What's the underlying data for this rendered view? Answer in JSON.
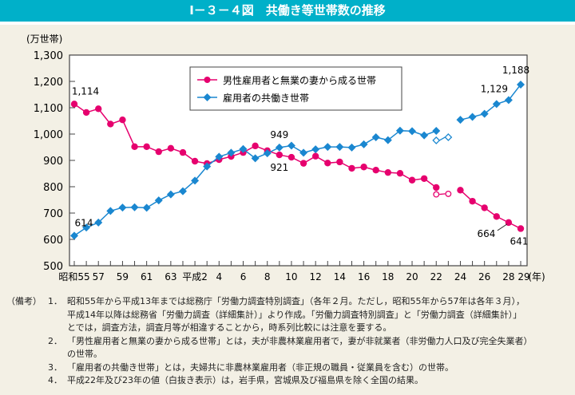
{
  "title": "Ⅰ－３－４図　共働き等世帯数の推移",
  "chart_data": {
    "type": "line",
    "ylabel": "(万世帯)",
    "xlabel": "(年)",
    "ylim": [
      500,
      1300
    ],
    "yticks": [
      "500",
      "600",
      "700",
      "800",
      "900",
      "1,000",
      "1,100",
      "1,200",
      "1,300"
    ],
    "x": [
      1980,
      1981,
      1982,
      1983,
      1984,
      1985,
      1986,
      1987,
      1988,
      1989,
      1990,
      1991,
      1992,
      1993,
      1994,
      1995,
      1996,
      1997,
      1998,
      1999,
      2000,
      2001,
      2002,
      2003,
      2004,
      2005,
      2006,
      2007,
      2008,
      2009,
      2010,
      2011,
      2012,
      2013,
      2014,
      2015,
      2016,
      2017
    ],
    "xtick_labels": [
      {
        "x": 1980,
        "label": "昭和55"
      },
      {
        "x": 1982,
        "label": "57"
      },
      {
        "x": 1984,
        "label": "59"
      },
      {
        "x": 1986,
        "label": "61"
      },
      {
        "x": 1988,
        "label": "63"
      },
      {
        "x": 1990,
        "label": "平成2"
      },
      {
        "x": 1992,
        "label": "4"
      },
      {
        "x": 1994,
        "label": "6"
      },
      {
        "x": 1996,
        "label": "8"
      },
      {
        "x": 1998,
        "label": "10"
      },
      {
        "x": 2000,
        "label": "12"
      },
      {
        "x": 2002,
        "label": "14"
      },
      {
        "x": 2004,
        "label": "16"
      },
      {
        "x": 2006,
        "label": "18"
      },
      {
        "x": 2008,
        "label": "20"
      },
      {
        "x": 2010,
        "label": "22"
      },
      {
        "x": 2012,
        "label": "24"
      },
      {
        "x": 2014,
        "label": "26"
      },
      {
        "x": 2016,
        "label": "28"
      },
      {
        "x": 2017,
        "label": "29"
      }
    ],
    "legend_position": "top-center",
    "series": [
      {
        "name": "男性雇用者と無業の妻から成る世帯",
        "color": "#e6006e",
        "marker": "circle",
        "values": [
          1114,
          1082,
          1096,
          1038,
          1054,
          952,
          952,
          933,
          946,
          930,
          897,
          888,
          903,
          915,
          930,
          955,
          937,
          921,
          912,
          889,
          916,
          890,
          894,
          870,
          875,
          863,
          854,
          851,
          825,
          831,
          797,
          null,
          787,
          745,
          720,
          687,
          664,
          641
        ],
        "open_points": [
          {
            "x": 2010,
            "y": 771
          },
          {
            "x": 2011,
            "y": 773
          }
        ]
      },
      {
        "name": "雇用者の共働き世帯",
        "color": "#1a87d0",
        "marker": "diamond",
        "values": [
          614,
          645,
          664,
          708,
          721,
          722,
          720,
          748,
          771,
          783,
          823,
          877,
          914,
          929,
          943,
          908,
          927,
          949,
          956,
          929,
          942,
          951,
          951,
          949,
          961,
          988,
          977,
          1013,
          1011,
          995,
          1012,
          null,
          1054,
          1065,
          1077,
          1114,
          1129,
          1188
        ],
        "open_points": [
          {
            "x": 2010,
            "y": 976
          },
          {
            "x": 2011,
            "y": 988
          }
        ]
      }
    ],
    "annotations": [
      {
        "series": 0,
        "x": 1980,
        "text": "1,114"
      },
      {
        "series": 1,
        "x": 1980,
        "text": "614"
      },
      {
        "series": 1,
        "x": 1997,
        "text": "949"
      },
      {
        "series": 0,
        "x": 1997,
        "text": "921"
      },
      {
        "series": 1,
        "x": 2016,
        "text": "1,129"
      },
      {
        "series": 1,
        "x": 2017,
        "text": "1,188"
      },
      {
        "series": 0,
        "x": 2016,
        "text": "664"
      },
      {
        "series": 0,
        "x": 2017,
        "text": "641"
      }
    ],
    "grid": false
  },
  "notes": {
    "head": "（備考）",
    "items": [
      {
        "num": "1．",
        "lines": [
          "昭和55年から平成13年までは総務庁「労働力調査特別調査」（各年２月。ただし，昭和55年から57年は各年３月），",
          "平成14年以降は総務省「労働力調査（詳細集計）」より作成。「労働力調査特別調査」と「労働力調査（詳細集計）」",
          "とでは，調査方法，調査月等が相違することから，時系列比較には注意を要する。"
        ]
      },
      {
        "num": "2．",
        "lines": [
          "「男性雇用者と無業の妻から成る世帯」とは，夫が非農林業雇用者で，妻が非就業者（非労働力人口及び完全失業者）",
          "の世帯。"
        ]
      },
      {
        "num": "3．",
        "lines": [
          "「雇用者の共働き世帯」とは，夫婦共に非農林業雇用者（非正規の職員・従業員を含む）の世帯。"
        ]
      },
      {
        "num": "4．",
        "lines": [
          "平成22年及び23年の値（白抜き表示）は，岩手県，宮城県及び福島県を除く全国の結果。"
        ]
      }
    ]
  }
}
